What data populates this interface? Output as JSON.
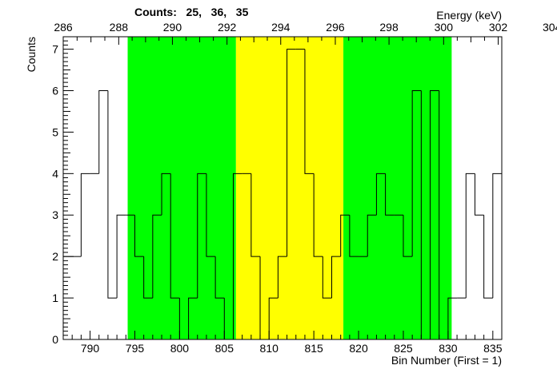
{
  "chart_data": {
    "type": "histogram",
    "title": "Counts:   25,   36,   35",
    "xlabel": "Bin Number (First = 1)",
    "ylabel": "Counts",
    "x2label": "Energy (keV)",
    "xlim": [
      787,
      836
    ],
    "ylim": [
      0,
      7.3
    ],
    "x_ticks": [
      790,
      795,
      800,
      805,
      810,
      815,
      820,
      825,
      830,
      835
    ],
    "x_tick_labels": [
      "790",
      "795",
      "800",
      "805",
      "810",
      "815",
      "820",
      "825",
      "830",
      "835"
    ],
    "y_ticks": [
      0,
      1,
      2,
      3,
      4,
      5,
      6,
      7
    ],
    "y_tick_labels": [
      "0",
      "1",
      "2",
      "3",
      "4",
      "5",
      "6",
      "7"
    ],
    "energy_ticks": [
      {
        "bin": 787.0,
        "label": "286"
      },
      {
        "bin": 793.2,
        "label": "288"
      },
      {
        "bin": 799.2,
        "label": "290"
      },
      {
        "bin": 805.3,
        "label": "292"
      },
      {
        "bin": 811.3,
        "label": "294"
      },
      {
        "bin": 817.4,
        "label": "296"
      },
      {
        "bin": 823.4,
        "label": "298"
      },
      {
        "bin": 829.5,
        "label": "300"
      },
      {
        "bin": 835.6,
        "label": "302"
      },
      {
        "bin": 841.6,
        "label": "304"
      }
    ],
    "regions": [
      {
        "name": "left-background",
        "from": 794.2,
        "to": 806.3,
        "color": "#00ff00"
      },
      {
        "name": "peak",
        "from": 806.3,
        "to": 818.3,
        "color": "#ffff00"
      },
      {
        "name": "right-background",
        "from": 818.3,
        "to": 830.4,
        "color": "#00ff00"
      }
    ],
    "bins": {
      "start": 787,
      "width": 1,
      "values": [
        2,
        2,
        4,
        4,
        6,
        1,
        3,
        3,
        2,
        1,
        3,
        4,
        1,
        0,
        1,
        4,
        2,
        1,
        0,
        4,
        4,
        2,
        0,
        1,
        2,
        7,
        7,
        4,
        2,
        1,
        2,
        3,
        2,
        2,
        3,
        4,
        3,
        3,
        2,
        6,
        0,
        6,
        0,
        1,
        1,
        4,
        3,
        1,
        4
      ]
    }
  }
}
